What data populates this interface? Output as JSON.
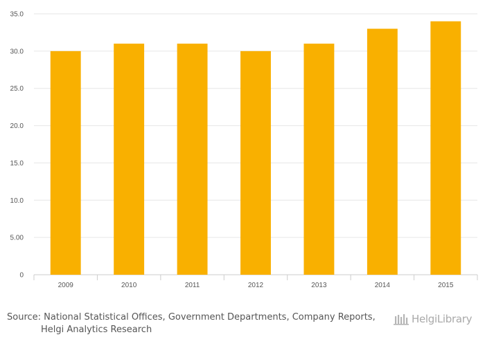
{
  "chart_data": {
    "type": "bar",
    "categories": [
      "2009",
      "2010",
      "2011",
      "2012",
      "2013",
      "2014",
      "2015"
    ],
    "values": [
      30.0,
      31.0,
      31.0,
      30.0,
      31.0,
      33.0,
      34.0
    ],
    "y_ticks": [
      0,
      5,
      10,
      15,
      20,
      25,
      30,
      35
    ],
    "y_tick_labels": [
      "0",
      "5.00",
      "10.0",
      "15.0",
      "20.0",
      "25.0",
      "30.0",
      "35.0"
    ],
    "ylim": [
      0,
      35
    ],
    "title": "",
    "xlabel": "",
    "ylabel": "",
    "grid": true,
    "legend": "none",
    "bar_color": "#f9b000",
    "grid_color": "#e6e6e6",
    "axis_color": "#cccccc"
  },
  "footer": {
    "source_line1": "Source: National Statistical Offices, Government Departments, Company Reports,",
    "source_line2": "Helgi Analytics Research"
  },
  "branding": {
    "text": "HelgiLibrary",
    "logo_icon": "helgi-library-logo-icon"
  }
}
